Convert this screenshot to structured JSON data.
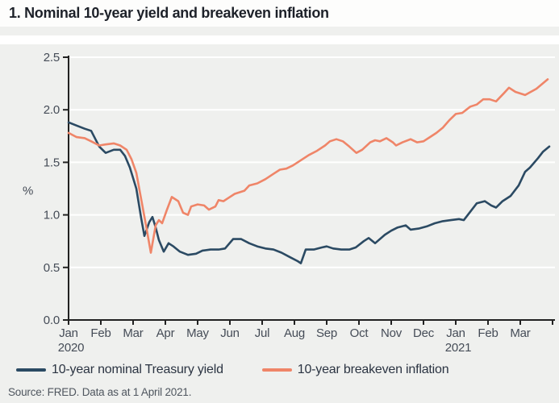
{
  "header": {
    "title": "1. Nominal 10-year yield and breakeven inflation"
  },
  "chart_data": {
    "type": "line",
    "title": "1. Nominal 10-year yield and breakeven inflation",
    "ylabel": "%",
    "ylim": [
      0,
      2.5
    ],
    "y_tick_labels": [
      "0.0",
      "0.5",
      "1.0",
      "1.5",
      "2.0",
      "2.5"
    ],
    "x_month_labels": [
      "Jan",
      "Feb",
      "Mar",
      "Apr",
      "May",
      "Jun",
      "Jul",
      "Aug",
      "Sep",
      "Oct",
      "Nov",
      "Dec",
      "Jan",
      "Feb",
      "Mar"
    ],
    "x_year_labels": [
      {
        "month_index": 0,
        "text": "2020"
      },
      {
        "month_index": 12,
        "text": "2021"
      }
    ],
    "grid": "horizontal-white",
    "legend_position": "bottom",
    "series": [
      {
        "name": "10-year nominal Treasury yield",
        "color": "#2b4a63",
        "points": [
          [
            0,
            1.88
          ],
          [
            0.25,
            1.85
          ],
          [
            0.5,
            1.82
          ],
          [
            0.7,
            1.8
          ],
          [
            0.95,
            1.65
          ],
          [
            1.15,
            1.59
          ],
          [
            1.4,
            1.62
          ],
          [
            1.6,
            1.62
          ],
          [
            1.75,
            1.56
          ],
          [
            1.9,
            1.45
          ],
          [
            2.1,
            1.25
          ],
          [
            2.25,
            0.97
          ],
          [
            2.35,
            0.8
          ],
          [
            2.5,
            0.93
          ],
          [
            2.6,
            0.98
          ],
          [
            2.7,
            0.88
          ],
          [
            2.8,
            0.76
          ],
          [
            2.95,
            0.65
          ],
          [
            3.1,
            0.73
          ],
          [
            3.25,
            0.7
          ],
          [
            3.45,
            0.65
          ],
          [
            3.7,
            0.62
          ],
          [
            3.95,
            0.63
          ],
          [
            4.15,
            0.66
          ],
          [
            4.4,
            0.67
          ],
          [
            4.65,
            0.67
          ],
          [
            4.85,
            0.68
          ],
          [
            5.1,
            0.77
          ],
          [
            5.35,
            0.77
          ],
          [
            5.6,
            0.73
          ],
          [
            5.85,
            0.7
          ],
          [
            6.1,
            0.68
          ],
          [
            6.35,
            0.67
          ],
          [
            6.6,
            0.64
          ],
          [
            6.85,
            0.6
          ],
          [
            7.1,
            0.56
          ],
          [
            7.2,
            0.54
          ],
          [
            7.35,
            0.67
          ],
          [
            7.6,
            0.67
          ],
          [
            7.85,
            0.69
          ],
          [
            8,
            0.7
          ],
          [
            8.2,
            0.68
          ],
          [
            8.45,
            0.67
          ],
          [
            8.7,
            0.67
          ],
          [
            8.9,
            0.69
          ],
          [
            9.15,
            0.75
          ],
          [
            9.3,
            0.78
          ],
          [
            9.5,
            0.73
          ],
          [
            9.8,
            0.81
          ],
          [
            10,
            0.85
          ],
          [
            10.2,
            0.88
          ],
          [
            10.45,
            0.9
          ],
          [
            10.6,
            0.86
          ],
          [
            10.85,
            0.87
          ],
          [
            11.1,
            0.89
          ],
          [
            11.35,
            0.92
          ],
          [
            11.6,
            0.94
          ],
          [
            11.85,
            0.95
          ],
          [
            12.1,
            0.96
          ],
          [
            12.25,
            0.95
          ],
          [
            12.65,
            1.11
          ],
          [
            12.9,
            1.13
          ],
          [
            13.1,
            1.09
          ],
          [
            13.25,
            1.07
          ],
          [
            13.45,
            1.13
          ],
          [
            13.7,
            1.18
          ],
          [
            13.95,
            1.28
          ],
          [
            14.15,
            1.41
          ],
          [
            14.3,
            1.45
          ],
          [
            14.55,
            1.54
          ],
          [
            14.7,
            1.6
          ],
          [
            14.9,
            1.65
          ]
        ]
      },
      {
        "name": "10-year breakeven inflation",
        "color": "#ef8568",
        "points": [
          [
            0,
            1.78
          ],
          [
            0.25,
            1.74
          ],
          [
            0.5,
            1.73
          ],
          [
            0.7,
            1.7
          ],
          [
            0.95,
            1.66
          ],
          [
            1.15,
            1.67
          ],
          [
            1.4,
            1.68
          ],
          [
            1.6,
            1.66
          ],
          [
            1.8,
            1.62
          ],
          [
            1.95,
            1.53
          ],
          [
            2.1,
            1.4
          ],
          [
            2.25,
            1.15
          ],
          [
            2.4,
            0.9
          ],
          [
            2.55,
            0.64
          ],
          [
            2.7,
            0.9
          ],
          [
            2.8,
            0.95
          ],
          [
            2.9,
            0.92
          ],
          [
            3.05,
            1.05
          ],
          [
            3.2,
            1.17
          ],
          [
            3.4,
            1.13
          ],
          [
            3.55,
            1.02
          ],
          [
            3.7,
            1.0
          ],
          [
            3.8,
            1.08
          ],
          [
            4,
            1.1
          ],
          [
            4.2,
            1.09
          ],
          [
            4.35,
            1.05
          ],
          [
            4.55,
            1.08
          ],
          [
            4.65,
            1.14
          ],
          [
            4.8,
            1.13
          ],
          [
            4.95,
            1.16
          ],
          [
            5.15,
            1.2
          ],
          [
            5.45,
            1.23
          ],
          [
            5.6,
            1.28
          ],
          [
            5.85,
            1.3
          ],
          [
            6.1,
            1.34
          ],
          [
            6.35,
            1.39
          ],
          [
            6.55,
            1.43
          ],
          [
            6.75,
            1.44
          ],
          [
            6.95,
            1.47
          ],
          [
            7.2,
            1.52
          ],
          [
            7.45,
            1.57
          ],
          [
            7.7,
            1.61
          ],
          [
            7.95,
            1.66
          ],
          [
            8.1,
            1.7
          ],
          [
            8.3,
            1.72
          ],
          [
            8.5,
            1.7
          ],
          [
            8.7,
            1.65
          ],
          [
            8.92,
            1.59
          ],
          [
            9.1,
            1.62
          ],
          [
            9.35,
            1.69
          ],
          [
            9.5,
            1.71
          ],
          [
            9.65,
            1.7
          ],
          [
            9.85,
            1.73
          ],
          [
            10.05,
            1.69
          ],
          [
            10.15,
            1.66
          ],
          [
            10.35,
            1.69
          ],
          [
            10.6,
            1.72
          ],
          [
            10.8,
            1.69
          ],
          [
            11,
            1.7
          ],
          [
            11.2,
            1.74
          ],
          [
            11.4,
            1.78
          ],
          [
            11.6,
            1.83
          ],
          [
            11.8,
            1.9
          ],
          [
            12,
            1.96
          ],
          [
            12.2,
            1.97
          ],
          [
            12.45,
            2.03
          ],
          [
            12.65,
            2.05
          ],
          [
            12.85,
            2.1
          ],
          [
            13.05,
            2.1
          ],
          [
            13.25,
            2.08
          ],
          [
            13.5,
            2.16
          ],
          [
            13.65,
            2.21
          ],
          [
            13.85,
            2.17
          ],
          [
            14.15,
            2.14
          ],
          [
            14.5,
            2.2
          ],
          [
            14.85,
            2.29
          ]
        ]
      }
    ]
  },
  "legend": {
    "items": [
      {
        "label": "10-year nominal Treasury yield",
        "color": "#2b4a63"
      },
      {
        "label": "10-year breakeven inflation",
        "color": "#ef8568"
      }
    ]
  },
  "source": {
    "text": "Source: FRED. Data as at 1 April 2021."
  },
  "colors": {
    "card_background": "#eff0ee",
    "gridline": "#ffffff",
    "axis": "#222222",
    "tick_label": "#454c57",
    "navy_series": "#2b4a63",
    "orange_series": "#ef8568"
  }
}
